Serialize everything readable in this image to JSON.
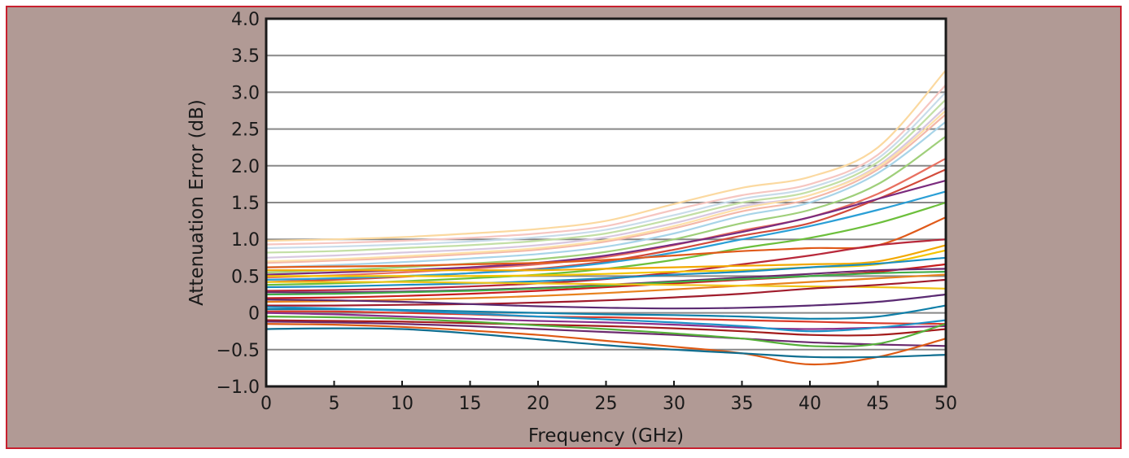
{
  "colors": {
    "frame_border": "#c8202f",
    "frame_background": "#b19a95",
    "plot_background": "#ffffff",
    "gridline": "#888888"
  },
  "chart_data": {
    "type": "line",
    "title": "",
    "xlabel": "Frequency (GHz)",
    "ylabel": "Attenuation Error (dB)",
    "xlim": [
      0,
      50
    ],
    "ylim": [
      -1.0,
      4.0
    ],
    "x_ticks": [
      "0",
      "5",
      "10",
      "15",
      "20",
      "25",
      "30",
      "35",
      "40",
      "45",
      "50"
    ],
    "y_ticks": [
      "−1.0",
      "−0.5",
      "0",
      "0.5",
      "1.0",
      "1.5",
      "2.0",
      "2.5",
      "3.0",
      "3.5",
      "4.0"
    ],
    "grid": "horizontal",
    "legend": "none",
    "x": [
      0,
      5,
      10,
      15,
      20,
      25,
      30,
      35,
      40,
      45,
      50
    ],
    "series": [
      {
        "color": "#fbd9a0",
        "values": [
          0.98,
          1.0,
          1.03,
          1.08,
          1.14,
          1.25,
          1.48,
          1.7,
          1.85,
          2.25,
          3.3
        ]
      },
      {
        "color": "#f6c6c1",
        "values": [
          0.93,
          0.95,
          0.98,
          1.02,
          1.08,
          1.18,
          1.4,
          1.6,
          1.75,
          2.15,
          3.1
        ]
      },
      {
        "color": "#c9dcea",
        "values": [
          0.88,
          0.9,
          0.93,
          0.97,
          1.03,
          1.13,
          1.33,
          1.55,
          1.7,
          2.1,
          3.0
        ]
      },
      {
        "color": "#c3dfa5",
        "values": [
          0.82,
          0.84,
          0.88,
          0.92,
          0.98,
          1.08,
          1.28,
          1.5,
          1.65,
          2.05,
          2.9
        ]
      },
      {
        "color": "#d8c8e0",
        "values": [
          0.75,
          0.78,
          0.82,
          0.86,
          0.92,
          1.03,
          1.22,
          1.45,
          1.6,
          2.0,
          2.8
        ]
      },
      {
        "color": "#f4b8a8",
        "values": [
          0.68,
          0.71,
          0.75,
          0.8,
          0.86,
          0.97,
          1.15,
          1.38,
          1.55,
          1.95,
          2.7
        ]
      },
      {
        "color": "#a8d4e8",
        "values": [
          0.62,
          0.65,
          0.69,
          0.74,
          0.8,
          0.9,
          1.08,
          1.32,
          1.5,
          1.9,
          2.6
        ]
      },
      {
        "color": "#fde0a8",
        "values": [
          0.7,
          0.73,
          0.77,
          0.82,
          0.88,
          0.99,
          1.18,
          1.42,
          1.6,
          1.98,
          2.75
        ]
      },
      {
        "color": "#9fcf7a",
        "values": [
          0.55,
          0.58,
          0.62,
          0.67,
          0.73,
          0.83,
          1.0,
          1.22,
          1.4,
          1.75,
          2.4
        ]
      },
      {
        "color": "#e87060",
        "values": [
          0.48,
          0.51,
          0.55,
          0.6,
          0.66,
          0.76,
          0.92,
          1.12,
          1.3,
          1.62,
          2.1
        ]
      },
      {
        "color": "#d24b3b",
        "values": [
          0.42,
          0.45,
          0.49,
          0.54,
          0.6,
          0.7,
          0.86,
          1.05,
          1.22,
          1.55,
          1.95
        ]
      },
      {
        "color": "#7b2b7e",
        "values": [
          0.52,
          0.55,
          0.58,
          0.62,
          0.68,
          0.78,
          0.93,
          1.1,
          1.3,
          1.55,
          1.8
        ]
      },
      {
        "color": "#2a9fd6",
        "values": [
          0.45,
          0.47,
          0.5,
          0.54,
          0.59,
          0.68,
          0.82,
          1.0,
          1.18,
          1.4,
          1.65
        ]
      },
      {
        "color": "#6cbf3b",
        "values": [
          0.38,
          0.4,
          0.43,
          0.47,
          0.52,
          0.6,
          0.72,
          0.88,
          1.02,
          1.22,
          1.5
        ]
      },
      {
        "color": "#e05a1a",
        "values": [
          0.62,
          0.63,
          0.64,
          0.66,
          0.68,
          0.72,
          0.78,
          0.84,
          0.88,
          0.92,
          1.3
        ]
      },
      {
        "color": "#b8283a",
        "values": [
          0.3,
          0.31,
          0.33,
          0.36,
          0.4,
          0.46,
          0.55,
          0.66,
          0.78,
          0.92,
          1.0
        ]
      },
      {
        "color": "#f2a800",
        "values": [
          0.58,
          0.58,
          0.58,
          0.58,
          0.58,
          0.6,
          0.62,
          0.64,
          0.66,
          0.7,
          0.92
        ]
      },
      {
        "color": "#f5c400",
        "values": [
          0.5,
          0.5,
          0.5,
          0.5,
          0.51,
          0.53,
          0.56,
          0.58,
          0.62,
          0.66,
          0.85
        ]
      },
      {
        "color": "#1b8fc0",
        "values": [
          0.35,
          0.36,
          0.38,
          0.4,
          0.43,
          0.47,
          0.52,
          0.56,
          0.62,
          0.67,
          0.75
        ]
      },
      {
        "color": "#c81e1e",
        "values": [
          0.2,
          0.21,
          0.23,
          0.26,
          0.3,
          0.35,
          0.4,
          0.45,
          0.5,
          0.56,
          0.66
        ]
      },
      {
        "color": "#6b2a6e",
        "values": [
          0.28,
          0.28,
          0.29,
          0.31,
          0.34,
          0.38,
          0.43,
          0.48,
          0.53,
          0.58,
          0.6
        ]
      },
      {
        "color": "#3fae49",
        "values": [
          0.25,
          0.26,
          0.28,
          0.3,
          0.33,
          0.37,
          0.42,
          0.46,
          0.5,
          0.54,
          0.56
        ]
      },
      {
        "color": "#e8821e",
        "values": [
          0.15,
          0.16,
          0.18,
          0.2,
          0.23,
          0.27,
          0.32,
          0.37,
          0.42,
          0.47,
          0.52
        ]
      },
      {
        "color": "#f0c419",
        "values": [
          0.42,
          0.42,
          0.42,
          0.41,
          0.4,
          0.39,
          0.38,
          0.37,
          0.36,
          0.35,
          0.33
        ]
      },
      {
        "color": "#a01c2c",
        "values": [
          0.1,
          0.1,
          0.11,
          0.12,
          0.14,
          0.17,
          0.21,
          0.26,
          0.33,
          0.38,
          0.45
        ]
      },
      {
        "color": "#5a2a72",
        "values": [
          0.18,
          0.17,
          0.15,
          0.12,
          0.09,
          0.07,
          0.06,
          0.07,
          0.1,
          0.15,
          0.25
        ]
      },
      {
        "color": "#0f7fa8",
        "values": [
          0.05,
          0.05,
          0.04,
          0.02,
          0.0,
          -0.02,
          -0.03,
          -0.05,
          -0.08,
          -0.05,
          0.1
        ]
      },
      {
        "color": "#d93a2a",
        "values": [
          0.02,
          0.02,
          0.0,
          -0.02,
          -0.05,
          -0.06,
          -0.08,
          -0.1,
          -0.12,
          -0.14,
          -0.15
        ]
      },
      {
        "color": "#8a2f8c",
        "values": [
          0.0,
          -0.02,
          -0.05,
          -0.08,
          -0.11,
          -0.13,
          -0.16,
          -0.2,
          -0.22,
          -0.2,
          -0.18
        ]
      },
      {
        "color": "#1e92c8",
        "values": [
          0.08,
          0.06,
          0.03,
          -0.01,
          -0.05,
          -0.09,
          -0.13,
          -0.18,
          -0.25,
          -0.2,
          -0.1
        ]
      },
      {
        "color": "#a31c1c",
        "values": [
          -0.1,
          -0.11,
          -0.12,
          -0.14,
          -0.16,
          -0.18,
          -0.21,
          -0.25,
          -0.3,
          -0.3,
          -0.22
        ]
      },
      {
        "color": "#6b2a6e",
        "values": [
          -0.12,
          -0.13,
          -0.15,
          -0.18,
          -0.22,
          -0.26,
          -0.3,
          -0.35,
          -0.4,
          -0.43,
          -0.45
        ]
      },
      {
        "color": "#55b03a",
        "values": [
          -0.05,
          -0.06,
          -0.08,
          -0.12,
          -0.17,
          -0.22,
          -0.28,
          -0.35,
          -0.45,
          -0.42,
          -0.15
        ]
      },
      {
        "color": "#de5a14",
        "values": [
          -0.15,
          -0.16,
          -0.19,
          -0.24,
          -0.3,
          -0.38,
          -0.46,
          -0.55,
          -0.7,
          -0.6,
          -0.35
        ]
      },
      {
        "color": "#0f6e90",
        "values": [
          -0.22,
          -0.21,
          -0.22,
          -0.28,
          -0.36,
          -0.44,
          -0.5,
          -0.55,
          -0.6,
          -0.6,
          -0.57
        ]
      }
    ]
  }
}
